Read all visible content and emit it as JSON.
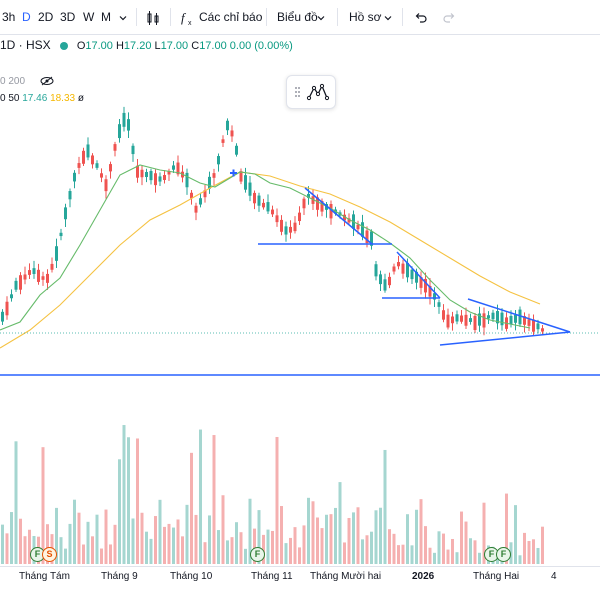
{
  "toolbar": {
    "intervals": [
      "3h",
      "D",
      "2D",
      "3D",
      "W",
      "M"
    ],
    "active_interval": "D",
    "indicators_label": "Các chỉ báo",
    "chart_label": "Biểu đồ",
    "profile_label": "Hồ sơ",
    "icons": [
      "chevron-down-icon",
      "candles-icon",
      "fx-icon",
      "undo-icon",
      "redo-icon"
    ]
  },
  "legend": {
    "symbol": "1D · HSX",
    "open_label": "O",
    "open": "17.00",
    "high_label": "H",
    "high": "17.20",
    "low_label": "L",
    "low": "17.00",
    "close_label": "C",
    "close": "17.00",
    "change": "0.00 (0.00%)"
  },
  "indicators": {
    "ma200_label": "0 200",
    "ma50_label": "0 50",
    "ma_value_1": "17.46",
    "ma_value_2": "18.33",
    "ma_extra": "ø"
  },
  "time_axis": [
    "Tháng Tám",
    "Tháng 9",
    "Tháng 10",
    "Tháng 11",
    "Tháng Mười hai",
    "2026",
    "Tháng Hai",
    "4"
  ],
  "events": [
    "F",
    "S",
    "F",
    "F",
    "F"
  ],
  "colors": {
    "up": "#26a69a",
    "down": "#ef5350",
    "ma_fast": "#66bb6a",
    "ma_slow": "#f5c242",
    "drawing": "#2962ff",
    "volume_up": "#a5d6d0",
    "volume_down": "#f5b0b0"
  }
}
